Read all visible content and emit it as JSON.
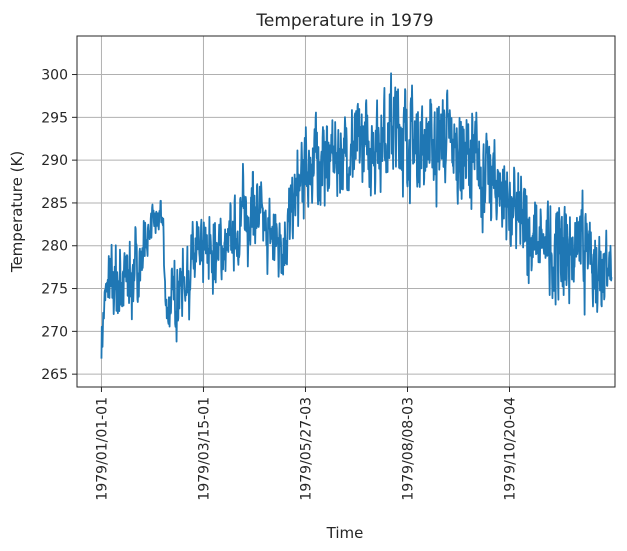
{
  "chart_data": {
    "type": "line",
    "title": "Temperature in 1979",
    "xlabel": "Time",
    "ylabel": "Temperature (K)",
    "x_ticks": [
      "1979/01/01-01",
      "1979/03/15-01",
      "1979/05/27-03",
      "1979/08/08-03",
      "1979/10/20-04"
    ],
    "x_tick_index": [
      0,
      292,
      584,
      876,
      1168
    ],
    "x_range_index": [
      -70,
      1470
    ],
    "y_ticks": [
      265,
      270,
      275,
      280,
      285,
      290,
      295,
      300
    ],
    "ylim": [
      263.5,
      304.5
    ],
    "grid": true,
    "line_color": "#1f77b4",
    "series": [
      {
        "name": "",
        "anchors": [
          {
            "i": 0,
            "lo": 265.5,
            "hi": 272.5
          },
          {
            "i": 15,
            "lo": 270.5,
            "hi": 280.0
          },
          {
            "i": 40,
            "lo": 269.0,
            "hi": 282.0
          },
          {
            "i": 80,
            "lo": 269.5,
            "hi": 283.0
          },
          {
            "i": 110,
            "lo": 272.0,
            "hi": 284.0
          },
          {
            "i": 140,
            "lo": 279.0,
            "hi": 285.5
          },
          {
            "i": 175,
            "lo": 280.5,
            "hi": 286.0
          },
          {
            "i": 185,
            "lo": 268.5,
            "hi": 276.0
          },
          {
            "i": 210,
            "lo": 268.5,
            "hi": 280.0
          },
          {
            "i": 260,
            "lo": 271.5,
            "hi": 284.0
          },
          {
            "i": 310,
            "lo": 273.0,
            "hi": 286.0
          },
          {
            "i": 360,
            "lo": 274.0,
            "hi": 285.0
          },
          {
            "i": 400,
            "lo": 276.0,
            "hi": 290.0
          },
          {
            "i": 430,
            "lo": 277.0,
            "hi": 293.0
          },
          {
            "i": 470,
            "lo": 276.0,
            "hi": 287.0
          },
          {
            "i": 520,
            "lo": 274.5,
            "hi": 286.0
          },
          {
            "i": 560,
            "lo": 279.0,
            "hi": 293.0
          },
          {
            "i": 600,
            "lo": 282.0,
            "hi": 297.5
          },
          {
            "i": 680,
            "lo": 284.0,
            "hi": 297.0
          },
          {
            "i": 760,
            "lo": 284.0,
            "hi": 299.5
          },
          {
            "i": 830,
            "lo": 285.0,
            "hi": 303.0
          },
          {
            "i": 900,
            "lo": 284.0,
            "hi": 300.0
          },
          {
            "i": 980,
            "lo": 283.0,
            "hi": 301.5
          },
          {
            "i": 1060,
            "lo": 281.0,
            "hi": 298.5
          },
          {
            "i": 1140,
            "lo": 279.0,
            "hi": 294.5
          },
          {
            "i": 1200,
            "lo": 275.0,
            "hi": 290.0
          },
          {
            "i": 1260,
            "lo": 272.0,
            "hi": 287.0
          },
          {
            "i": 1300,
            "lo": 269.5,
            "hi": 289.5
          },
          {
            "i": 1360,
            "lo": 272.0,
            "hi": 288.0
          },
          {
            "i": 1410,
            "lo": 270.0,
            "hi": 286.0
          },
          {
            "i": 1460,
            "lo": 273.5,
            "hi": 283.0
          }
        ],
        "points_per_day": 4
      }
    ]
  }
}
